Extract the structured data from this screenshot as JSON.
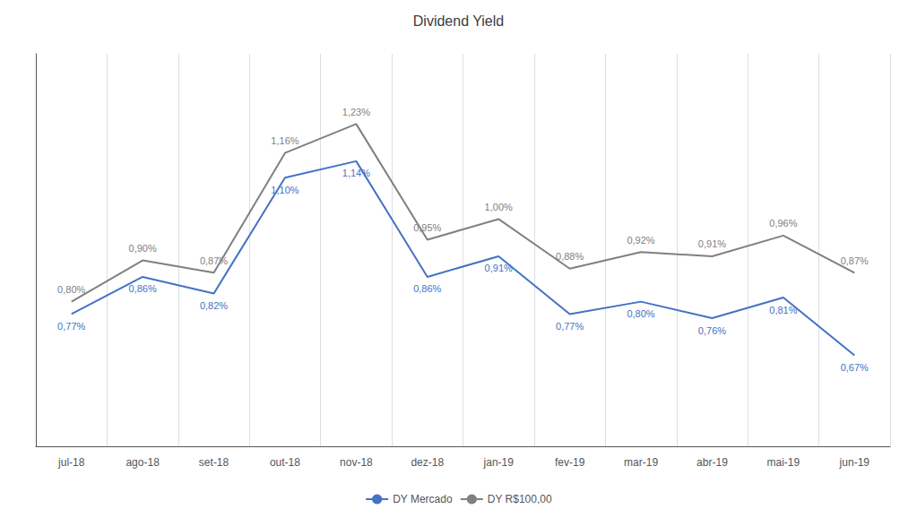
{
  "chart_data": {
    "type": "line",
    "title": "Dividend Yield",
    "categories": [
      "jul-18",
      "ago-18",
      "set-18",
      "out-18",
      "nov-18",
      "dez-18",
      "jan-19",
      "fev-19",
      "mar-19",
      "abr-19",
      "mai-19",
      "jun-19"
    ],
    "series": [
      {
        "name": "DY Mercado",
        "color": "#4472C4",
        "values": [
          0.77,
          0.86,
          0.82,
          1.1,
          1.14,
          0.86,
          0.91,
          0.77,
          0.8,
          0.76,
          0.81,
          0.67
        ],
        "value_labels": [
          "0,77%",
          "0,86%",
          "0,82%",
          "1,10%",
          "1,14%",
          "0,86%",
          "0,91%",
          "0,77%",
          "0,80%",
          "0,76%",
          "0,81%",
          "0,67%"
        ]
      },
      {
        "name": "DY R$100,00",
        "color": "#808080",
        "values": [
          0.8,
          0.9,
          0.87,
          1.16,
          1.23,
          0.95,
          1.0,
          0.88,
          0.92,
          0.91,
          0.96,
          0.87
        ],
        "value_labels": [
          "0,80%",
          "0,90%",
          "0,87%",
          "1,16%",
          "1,23%",
          "0,95%",
          "1,00%",
          "0,88%",
          "0,92%",
          "0,91%",
          "0,96%",
          "0,87%"
        ]
      }
    ],
    "ylim": [
      0.45,
      1.4
    ],
    "grid": "x",
    "legend": "bottom",
    "data_labels": true,
    "tick_labels": "x"
  }
}
